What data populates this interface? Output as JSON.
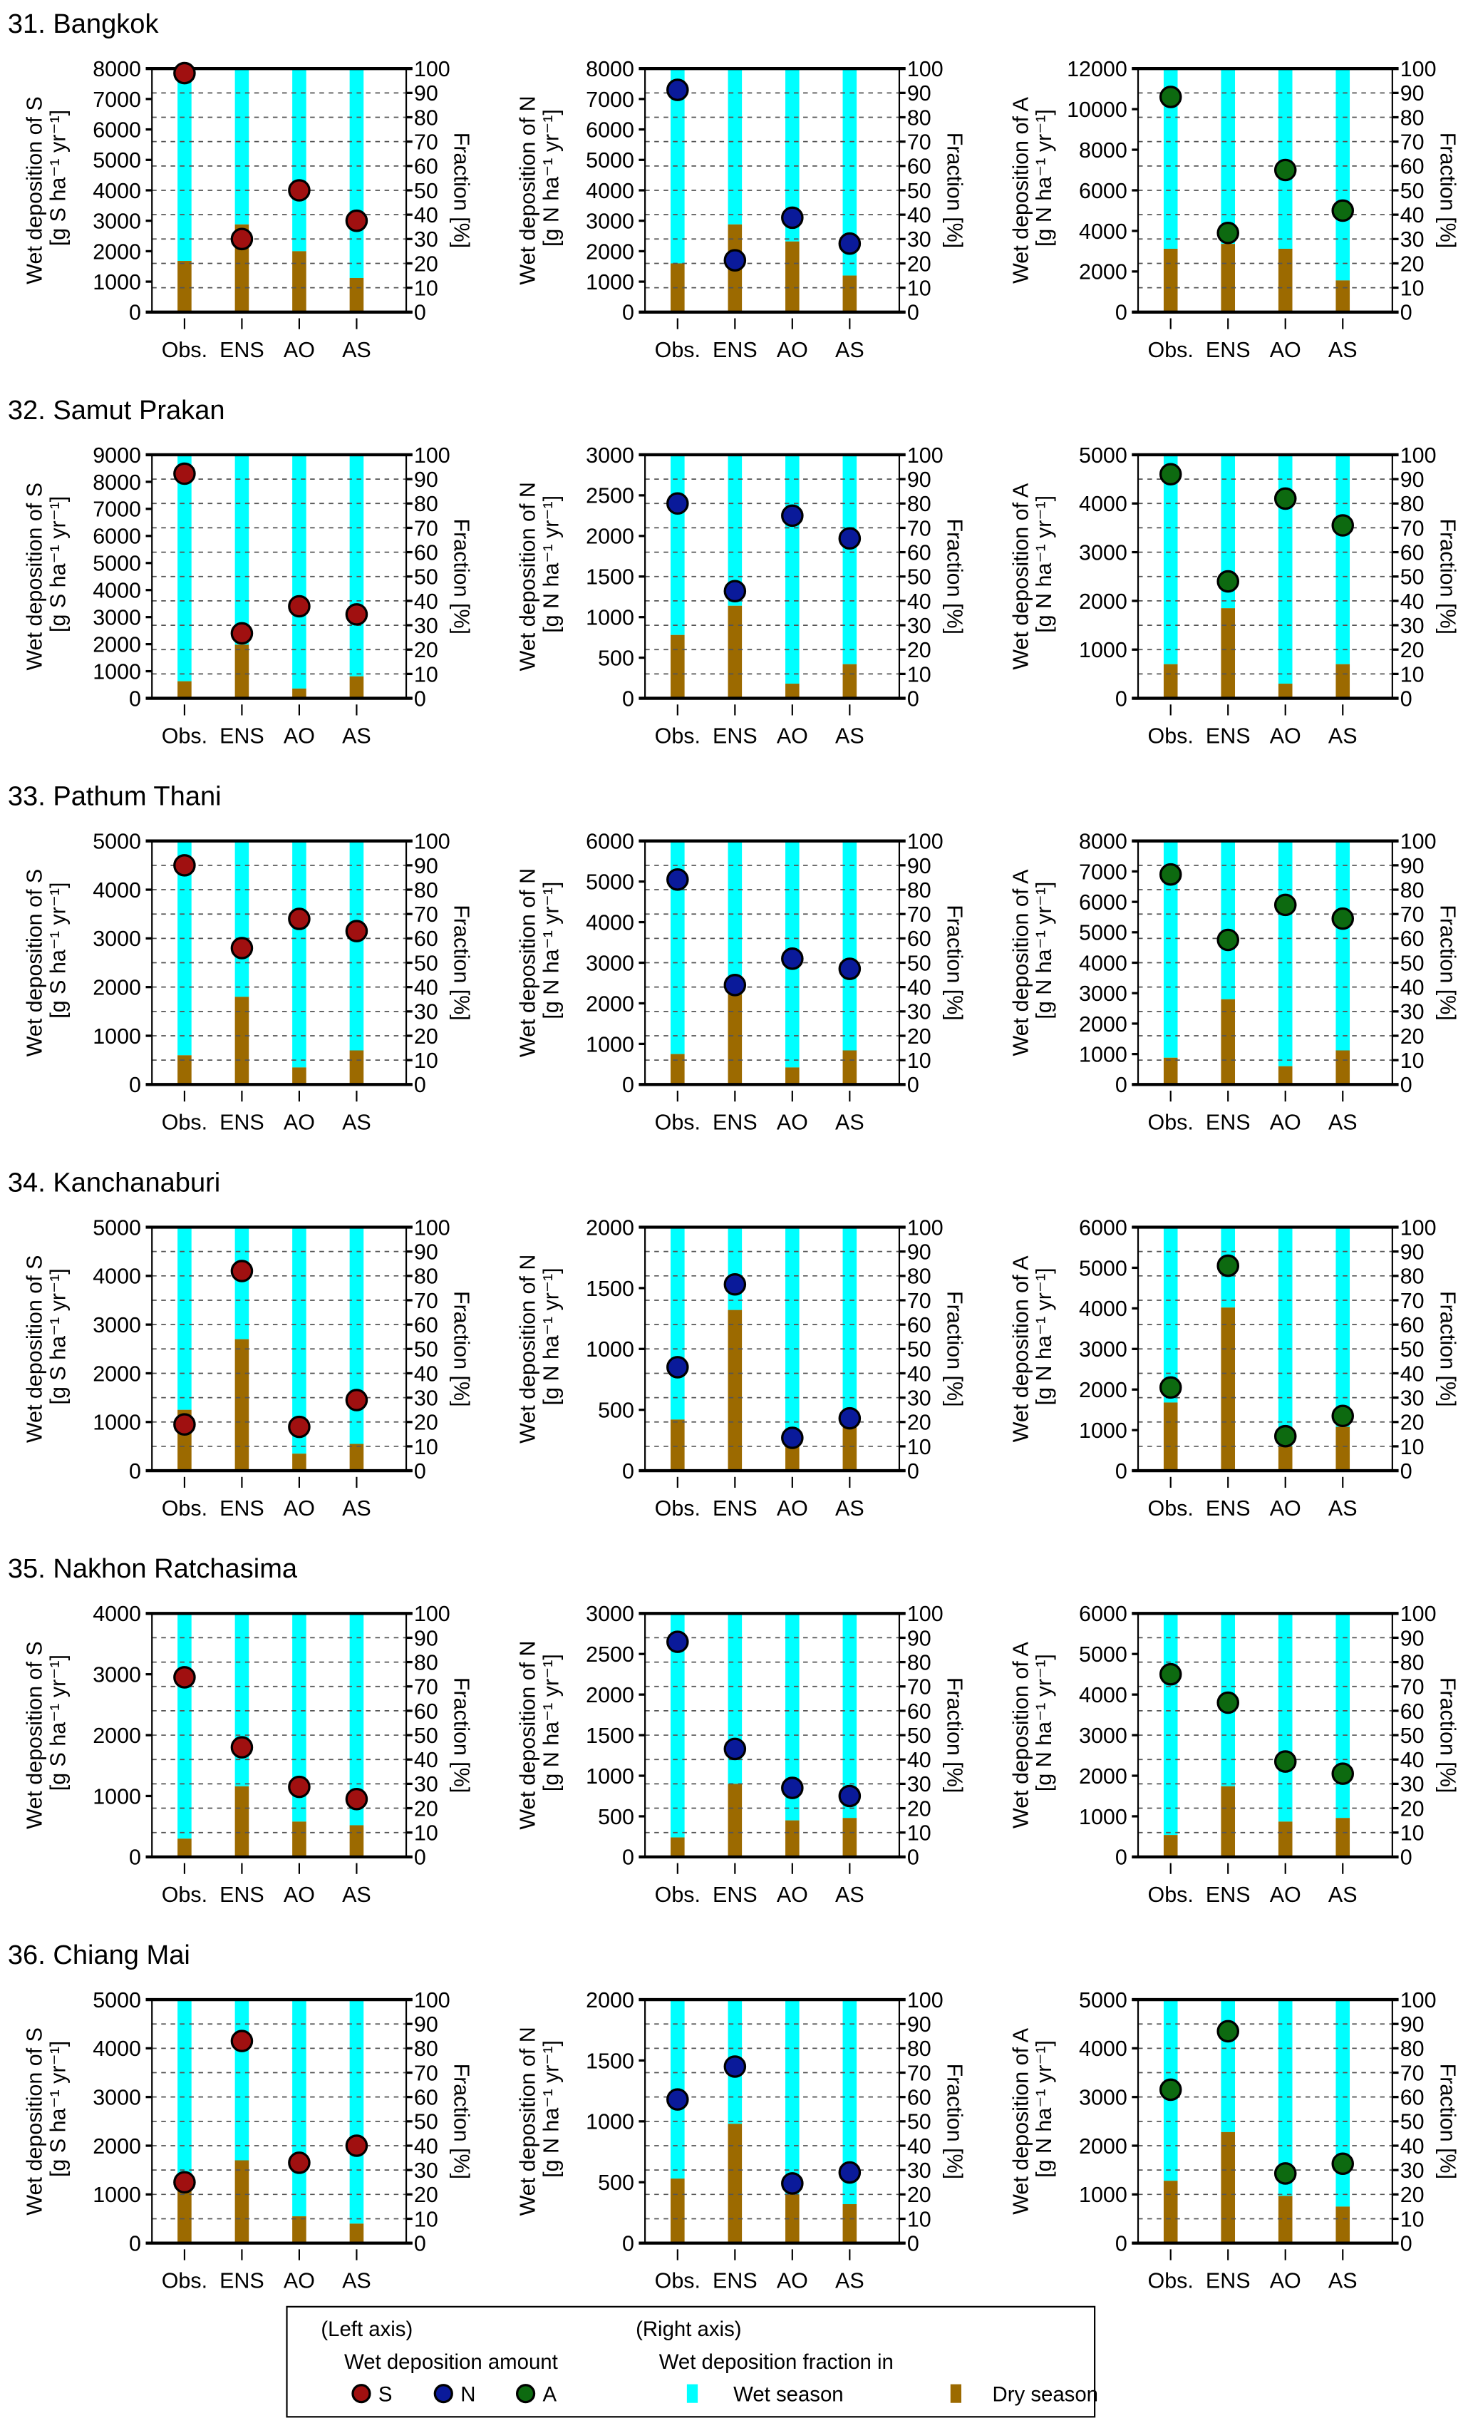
{
  "figure": {
    "categories": [
      "Obs.",
      "ENS",
      "AO",
      "AS"
    ],
    "right_axis_label": "Fraction [%]",
    "right_axis_ticks": [
      0,
      10,
      20,
      30,
      40,
      50,
      60,
      70,
      80,
      90,
      100
    ],
    "colors": {
      "wet_season": "#00FFFF",
      "dry_season": "#9C6A00",
      "S": "#A01010",
      "N": "#0A1A9A",
      "A": "#0D6A10",
      "S_text": "#FF0000",
      "N_text": "#0000FF",
      "A_text": "#2E8B2E"
    }
  },
  "chart_data": [
    {
      "type": "bar+scatter",
      "title": "31. Bangkok",
      "panels": [
        {
          "species": "S",
          "ylabel": "Wet deposition of S",
          "unit": "[g S ha⁻¹ yr⁻¹]",
          "ylim": [
            0,
            8000
          ],
          "step": 1000,
          "dry_fraction": [
            21,
            36,
            25,
            14
          ],
          "amount": [
            7850,
            2400,
            4000,
            3000
          ]
        },
        {
          "species": "N",
          "ylabel": "Wet deposition of N",
          "unit": "[g N ha⁻¹ yr⁻¹]",
          "ylim": [
            0,
            8000
          ],
          "step": 1000,
          "dry_fraction": [
            20,
            36,
            29,
            15
          ],
          "amount": [
            7300,
            1700,
            3100,
            2250
          ]
        },
        {
          "species": "A",
          "ylabel": "Wet deposition of A",
          "unit": "[g N ha⁻¹ yr⁻¹]",
          "ylim": [
            0,
            12000
          ],
          "step": 2000,
          "dry_fraction": [
            26,
            28,
            26,
            13
          ],
          "amount": [
            10600,
            3900,
            7000,
            5000
          ]
        }
      ]
    },
    {
      "type": "bar+scatter",
      "title": "32. Samut Prakan",
      "panels": [
        {
          "species": "S",
          "ylabel": "Wet deposition of S",
          "unit": "[g S ha⁻¹ yr⁻¹]",
          "ylim": [
            0,
            9000
          ],
          "step": 1000,
          "dry_fraction": [
            7,
            22,
            4,
            9
          ],
          "amount": [
            8300,
            2400,
            3400,
            3100
          ]
        },
        {
          "species": "N",
          "ylabel": "Wet deposition of N",
          "unit": "[g N ha⁻¹ yr⁻¹]",
          "ylim": [
            0,
            3000
          ],
          "step": 500,
          "dry_fraction": [
            26,
            38,
            6,
            14
          ],
          "amount": [
            2400,
            1320,
            2250,
            1970
          ]
        },
        {
          "species": "A",
          "ylabel": "Wet deposition of A",
          "unit": "[g N ha⁻¹ yr⁻¹]",
          "ylim": [
            0,
            5000
          ],
          "step": 1000,
          "dry_fraction": [
            14,
            37,
            6,
            14
          ],
          "amount": [
            4600,
            2400,
            4100,
            3550
          ]
        }
      ]
    },
    {
      "type": "bar+scatter",
      "title": "33. Pathum Thani",
      "panels": [
        {
          "species": "S",
          "ylabel": "Wet deposition of S",
          "unit": "[g S ha⁻¹ yr⁻¹]",
          "ylim": [
            0,
            5000
          ],
          "step": 1000,
          "dry_fraction": [
            12,
            36,
            7,
            14
          ],
          "amount": [
            4500,
            2800,
            3400,
            3150
          ]
        },
        {
          "species": "N",
          "ylabel": "Wet deposition of N",
          "unit": "[g N ha⁻¹ yr⁻¹]",
          "ylim": [
            0,
            6000
          ],
          "step": 1000,
          "dry_fraction": [
            12.5,
            37,
            7,
            14
          ],
          "amount": [
            5050,
            2450,
            3100,
            2850
          ]
        },
        {
          "species": "A",
          "ylabel": "Wet deposition of A",
          "unit": "[g N ha⁻¹ yr⁻¹]",
          "ylim": [
            0,
            8000
          ],
          "step": 1000,
          "dry_fraction": [
            11,
            35,
            7.5,
            14
          ],
          "amount": [
            6900,
            4750,
            5900,
            5450
          ]
        }
      ]
    },
    {
      "type": "bar+scatter",
      "title": "34. Kanchanaburi",
      "panels": [
        {
          "species": "S",
          "ylabel": "Wet deposition of S",
          "unit": "[g S ha⁻¹ yr⁻¹]",
          "ylim": [
            0,
            5000
          ],
          "step": 1000,
          "dry_fraction": [
            25,
            54,
            7,
            11
          ],
          "amount": [
            950,
            4100,
            900,
            1450
          ]
        },
        {
          "species": "N",
          "ylabel": "Wet deposition of N",
          "unit": "[g N ha⁻¹ yr⁻¹]",
          "ylim": [
            0,
            2000
          ],
          "step": 500,
          "dry_fraction": [
            21,
            66,
            10,
            19
          ],
          "amount": [
            850,
            1530,
            270,
            430
          ]
        },
        {
          "species": "A",
          "ylabel": "Wet deposition of A",
          "unit": "[g N ha⁻¹ yr⁻¹]",
          "ylim": [
            0,
            6000
          ],
          "step": 1000,
          "dry_fraction": [
            28,
            67,
            10,
            18
          ],
          "amount": [
            2050,
            5050,
            850,
            1350
          ]
        }
      ]
    },
    {
      "type": "bar+scatter",
      "title": "35. Nakhon Ratchasima",
      "panels": [
        {
          "species": "S",
          "ylabel": "Wet deposition of S",
          "unit": "[g S ha⁻¹ yr⁻¹]",
          "ylim": [
            0,
            4000
          ],
          "step": 1000,
          "dry_fraction": [
            7.5,
            29,
            14.5,
            13
          ],
          "amount": [
            2950,
            1800,
            1150,
            950
          ]
        },
        {
          "species": "N",
          "ylabel": "Wet deposition of N",
          "unit": "[g N ha⁻¹ yr⁻¹]",
          "ylim": [
            0,
            3000
          ],
          "step": 500,
          "dry_fraction": [
            8,
            30,
            15,
            16
          ],
          "amount": [
            2650,
            1330,
            850,
            750
          ]
        },
        {
          "species": "A",
          "ylabel": "Wet deposition of A",
          "unit": "[g N ha⁻¹ yr⁻¹]",
          "ylim": [
            0,
            6000
          ],
          "step": 1000,
          "dry_fraction": [
            9,
            29,
            14.5,
            16
          ],
          "amount": [
            4500,
            3800,
            2350,
            2050
          ]
        }
      ]
    },
    {
      "type": "bar+scatter",
      "title": "36. Chiang Mai",
      "panels": [
        {
          "species": "S",
          "ylabel": "Wet deposition of S",
          "unit": "[g S ha⁻¹ yr⁻¹]",
          "ylim": [
            0,
            5000
          ],
          "step": 1000,
          "dry_fraction": [
            22,
            34,
            11,
            8
          ],
          "amount": [
            1250,
            4150,
            1650,
            2000
          ]
        },
        {
          "species": "N",
          "ylabel": "Wet deposition of N",
          "unit": "[g N ha⁻¹ yr⁻¹]",
          "ylim": [
            0,
            2000
          ],
          "step": 500,
          "dry_fraction": [
            26.5,
            49,
            20,
            16
          ],
          "amount": [
            1180,
            1450,
            490,
            580
          ]
        },
        {
          "species": "A",
          "ylabel": "Wet deposition of A",
          "unit": "[g N ha⁻¹ yr⁻¹]",
          "ylim": [
            0,
            5000
          ],
          "step": 1000,
          "dry_fraction": [
            25.6,
            45.6,
            19.4,
            15
          ],
          "amount": [
            3150,
            4350,
            1430,
            1630
          ]
        }
      ]
    }
  ],
  "legend": {
    "left_header": "(Left axis)",
    "right_header": "(Right axis)",
    "left_title": "Wet deposition amount",
    "right_title": "Wet deposition fraction in",
    "S": "S",
    "N": "N",
    "A": "A",
    "wet": "Wet season",
    "dry": "Dry season"
  }
}
